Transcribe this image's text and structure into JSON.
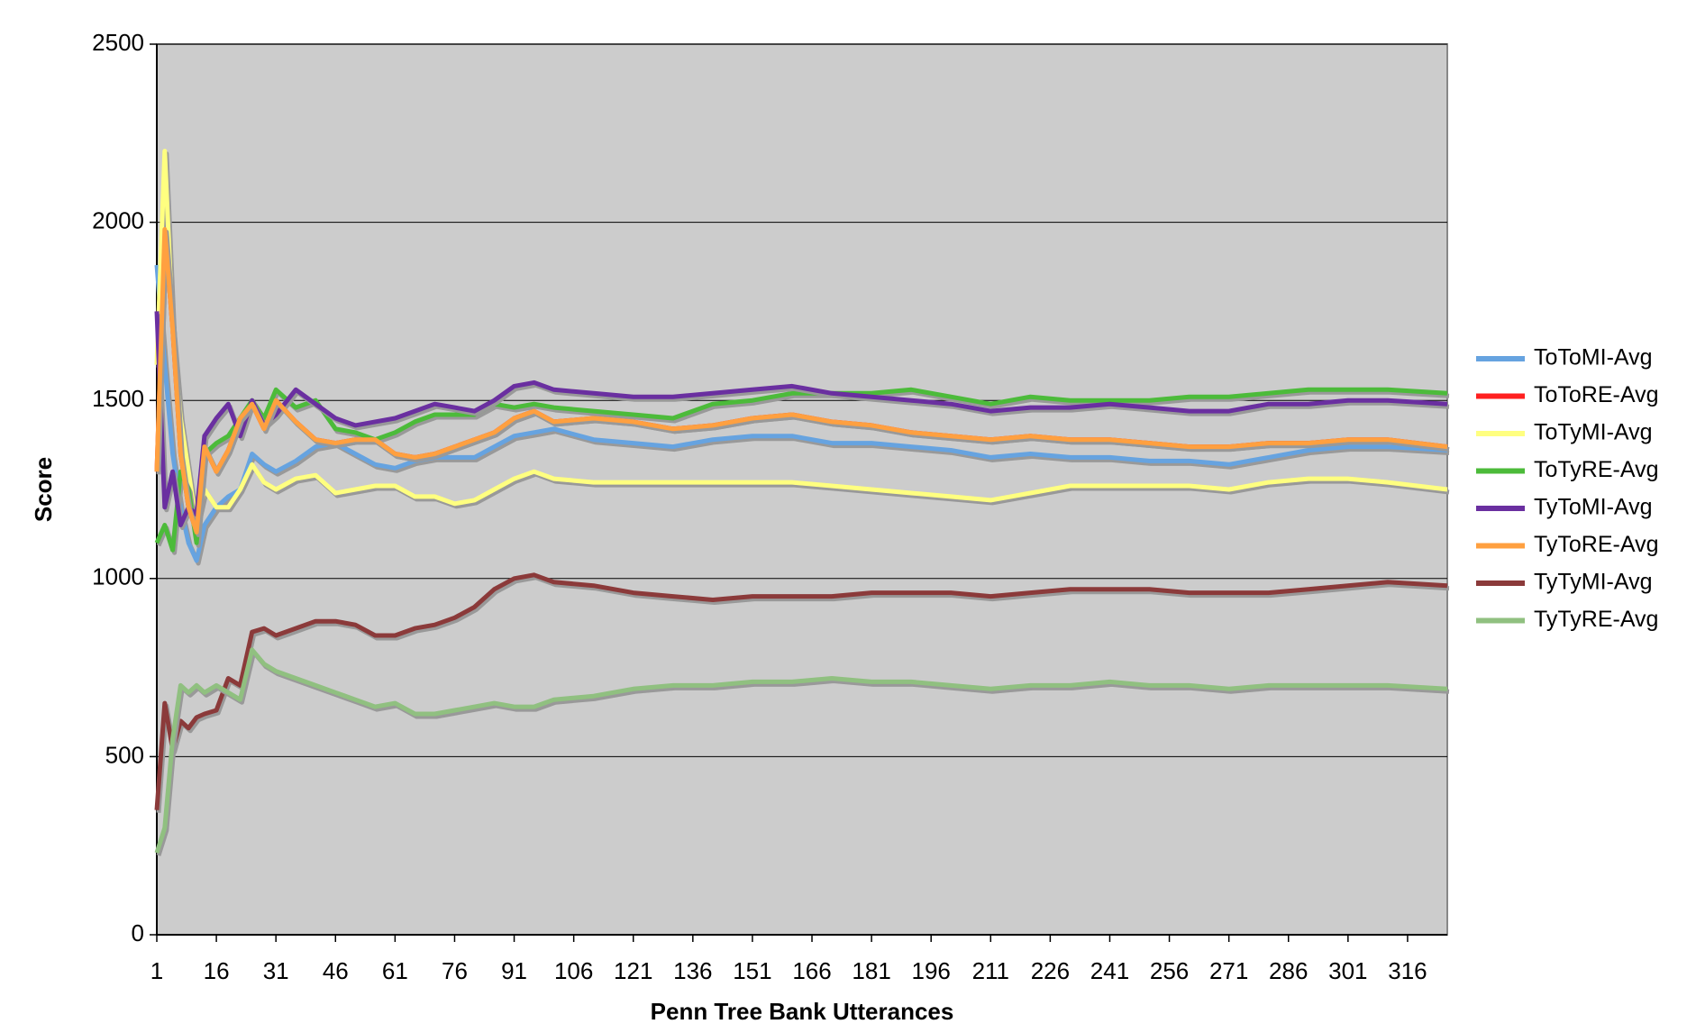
{
  "chart_data": {
    "type": "line",
    "x_label": "Penn Tree Bank Utterances",
    "y_label": "Score",
    "x": [
      1,
      3,
      5,
      7,
      9,
      11,
      13,
      16,
      19,
      22,
      25,
      28,
      31,
      36,
      41,
      46,
      51,
      56,
      61,
      66,
      71,
      76,
      81,
      86,
      91,
      96,
      101,
      111,
      121,
      131,
      141,
      151,
      161,
      171,
      181,
      191,
      201,
      211,
      221,
      231,
      241,
      251,
      261,
      271,
      281,
      291,
      301,
      311,
      326
    ],
    "xlim": [
      1,
      326
    ],
    "xticks": [
      1,
      16,
      31,
      46,
      61,
      76,
      91,
      106,
      121,
      136,
      151,
      166,
      181,
      196,
      211,
      226,
      241,
      256,
      271,
      286,
      301,
      316
    ],
    "ylim": [
      0,
      2500
    ],
    "yticks": [
      0,
      500,
      1000,
      1500,
      2000,
      2500
    ],
    "grid": true,
    "legend": "right",
    "series": [
      {
        "name": "ToToMI-Avg",
        "color": "#66a3e0",
        "values": [
          1880,
          1600,
          1350,
          1200,
          1100,
          1050,
          1150,
          1200,
          1230,
          1250,
          1350,
          1320,
          1300,
          1330,
          1370,
          1380,
          1350,
          1320,
          1310,
          1330,
          1340,
          1340,
          1340,
          1370,
          1400,
          1410,
          1420,
          1390,
          1380,
          1370,
          1390,
          1400,
          1400,
          1380,
          1380,
          1370,
          1360,
          1340,
          1350,
          1340,
          1340,
          1330,
          1330,
          1320,
          1340,
          1360,
          1370,
          1370,
          1360
        ]
      },
      {
        "name": "ToToRE-Avg",
        "color": "#ff2020",
        "values": [
          1300,
          1980,
          1700,
          1350,
          1200,
          1130,
          1370,
          1300,
          1360,
          1450,
          1490,
          1420,
          1500,
          1440,
          1390,
          1380,
          1390,
          1390,
          1350,
          1340,
          1350,
          1370,
          1390,
          1410,
          1450,
          1470,
          1440,
          1450,
          1440,
          1420,
          1430,
          1450,
          1460,
          1440,
          1430,
          1410,
          1400,
          1390,
          1400,
          1390,
          1390,
          1380,
          1370,
          1370,
          1380,
          1380,
          1390,
          1390,
          1370
        ]
      },
      {
        "name": "ToTyMI-Avg",
        "color": "#ffff80",
        "values": [
          1600,
          2200,
          1700,
          1450,
          1300,
          1150,
          1250,
          1200,
          1200,
          1250,
          1320,
          1270,
          1250,
          1280,
          1290,
          1240,
          1250,
          1260,
          1260,
          1230,
          1230,
          1210,
          1220,
          1250,
          1280,
          1300,
          1280,
          1270,
          1270,
          1270,
          1270,
          1270,
          1270,
          1260,
          1250,
          1240,
          1230,
          1220,
          1240,
          1260,
          1260,
          1260,
          1260,
          1250,
          1270,
          1280,
          1280,
          1270,
          1250
        ]
      },
      {
        "name": "ToTyRE-Avg",
        "color": "#4cbb3a",
        "values": [
          1100,
          1150,
          1080,
          1300,
          1250,
          1100,
          1350,
          1380,
          1400,
          1450,
          1500,
          1450,
          1530,
          1480,
          1500,
          1420,
          1410,
          1390,
          1410,
          1440,
          1460,
          1460,
          1460,
          1490,
          1480,
          1490,
          1480,
          1470,
          1460,
          1450,
          1490,
          1500,
          1520,
          1520,
          1520,
          1530,
          1510,
          1490,
          1510,
          1500,
          1500,
          1500,
          1510,
          1510,
          1520,
          1530,
          1530,
          1530,
          1520
        ]
      },
      {
        "name": "TyToMI-Avg",
        "color": "#6a2fa0",
        "values": [
          1750,
          1200,
          1300,
          1150,
          1200,
          1180,
          1400,
          1450,
          1490,
          1400,
          1500,
          1430,
          1460,
          1530,
          1490,
          1450,
          1430,
          1440,
          1450,
          1470,
          1490,
          1480,
          1470,
          1500,
          1540,
          1550,
          1530,
          1520,
          1510,
          1510,
          1520,
          1530,
          1540,
          1520,
          1510,
          1500,
          1490,
          1470,
          1480,
          1480,
          1490,
          1480,
          1470,
          1470,
          1490,
          1490,
          1500,
          1500,
          1490
        ]
      },
      {
        "name": "TyToRE-Avg",
        "color": "#ffa040",
        "values": [
          1300,
          1980,
          1700,
          1350,
          1200,
          1130,
          1370,
          1300,
          1360,
          1450,
          1490,
          1420,
          1500,
          1440,
          1390,
          1380,
          1390,
          1390,
          1350,
          1340,
          1350,
          1370,
          1390,
          1410,
          1450,
          1470,
          1440,
          1450,
          1440,
          1420,
          1430,
          1450,
          1460,
          1440,
          1430,
          1410,
          1400,
          1390,
          1400,
          1390,
          1390,
          1380,
          1370,
          1370,
          1380,
          1380,
          1390,
          1390,
          1370
        ]
      },
      {
        "name": "TyTyMI-Avg",
        "color": "#8b3a3a",
        "values": [
          350,
          650,
          520,
          600,
          580,
          610,
          620,
          630,
          720,
          700,
          850,
          860,
          840,
          860,
          880,
          880,
          870,
          840,
          840,
          860,
          870,
          890,
          920,
          970,
          1000,
          1010,
          990,
          980,
          960,
          950,
          940,
          950,
          950,
          950,
          960,
          960,
          960,
          950,
          960,
          970,
          970,
          970,
          960,
          960,
          960,
          970,
          980,
          990,
          980
        ]
      },
      {
        "name": "TyTyRE-Avg",
        "color": "#90c080",
        "values": [
          230,
          300,
          550,
          700,
          680,
          700,
          680,
          700,
          680,
          660,
          800,
          760,
          740,
          720,
          700,
          680,
          660,
          640,
          650,
          620,
          620,
          630,
          640,
          650,
          640,
          640,
          660,
          670,
          690,
          700,
          700,
          710,
          710,
          720,
          710,
          710,
          700,
          690,
          700,
          700,
          710,
          700,
          700,
          690,
          700,
          700,
          700,
          700,
          690
        ]
      }
    ]
  }
}
